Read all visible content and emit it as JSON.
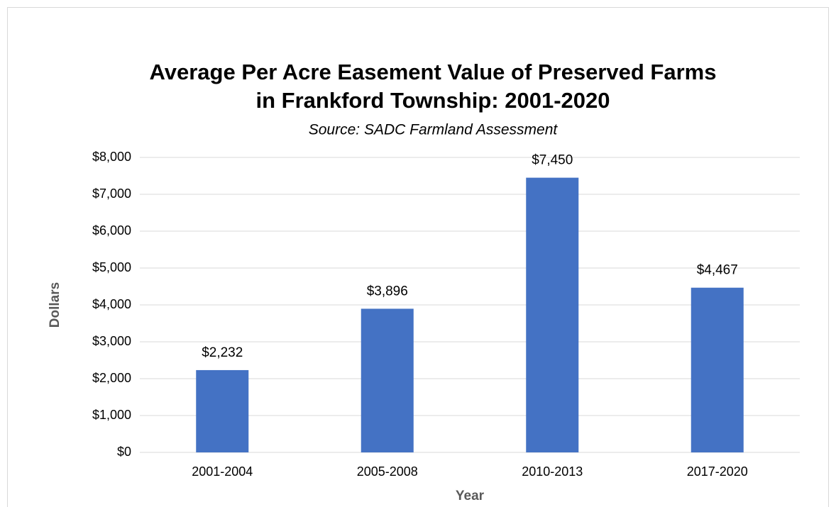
{
  "chart_data": {
    "type": "bar",
    "title": [
      "Average Per Acre Easement Value of Preserved Farms",
      "in Frankford Township: 2001-2020"
    ],
    "subtitle": "Source: SADC Farmland Assessment",
    "x_label": "Year",
    "y_label": "Dollars",
    "categories": [
      "2001-2004",
      "2005-2008",
      "2010-2013",
      "2017-2020"
    ],
    "values": [
      2232,
      3896,
      7450,
      4467
    ],
    "value_labels": [
      "$2,232",
      "$3,896",
      "$7,450",
      "$4,467"
    ],
    "color": "#4472c4",
    "ylim": [
      0,
      8000
    ],
    "yticks": [
      {
        "value": 0,
        "label": "$0"
      },
      {
        "value": 1000,
        "label": "$1,000"
      },
      {
        "value": 2000,
        "label": "$2,000"
      },
      {
        "value": 3000,
        "label": "$3,000"
      },
      {
        "value": 4000,
        "label": "$4,000"
      },
      {
        "value": 5000,
        "label": "$5,000"
      },
      {
        "value": 6000,
        "label": "$6,000"
      },
      {
        "value": 7000,
        "label": "$7,000"
      },
      {
        "value": 8000,
        "label": "$8,000"
      }
    ],
    "grid": true
  }
}
